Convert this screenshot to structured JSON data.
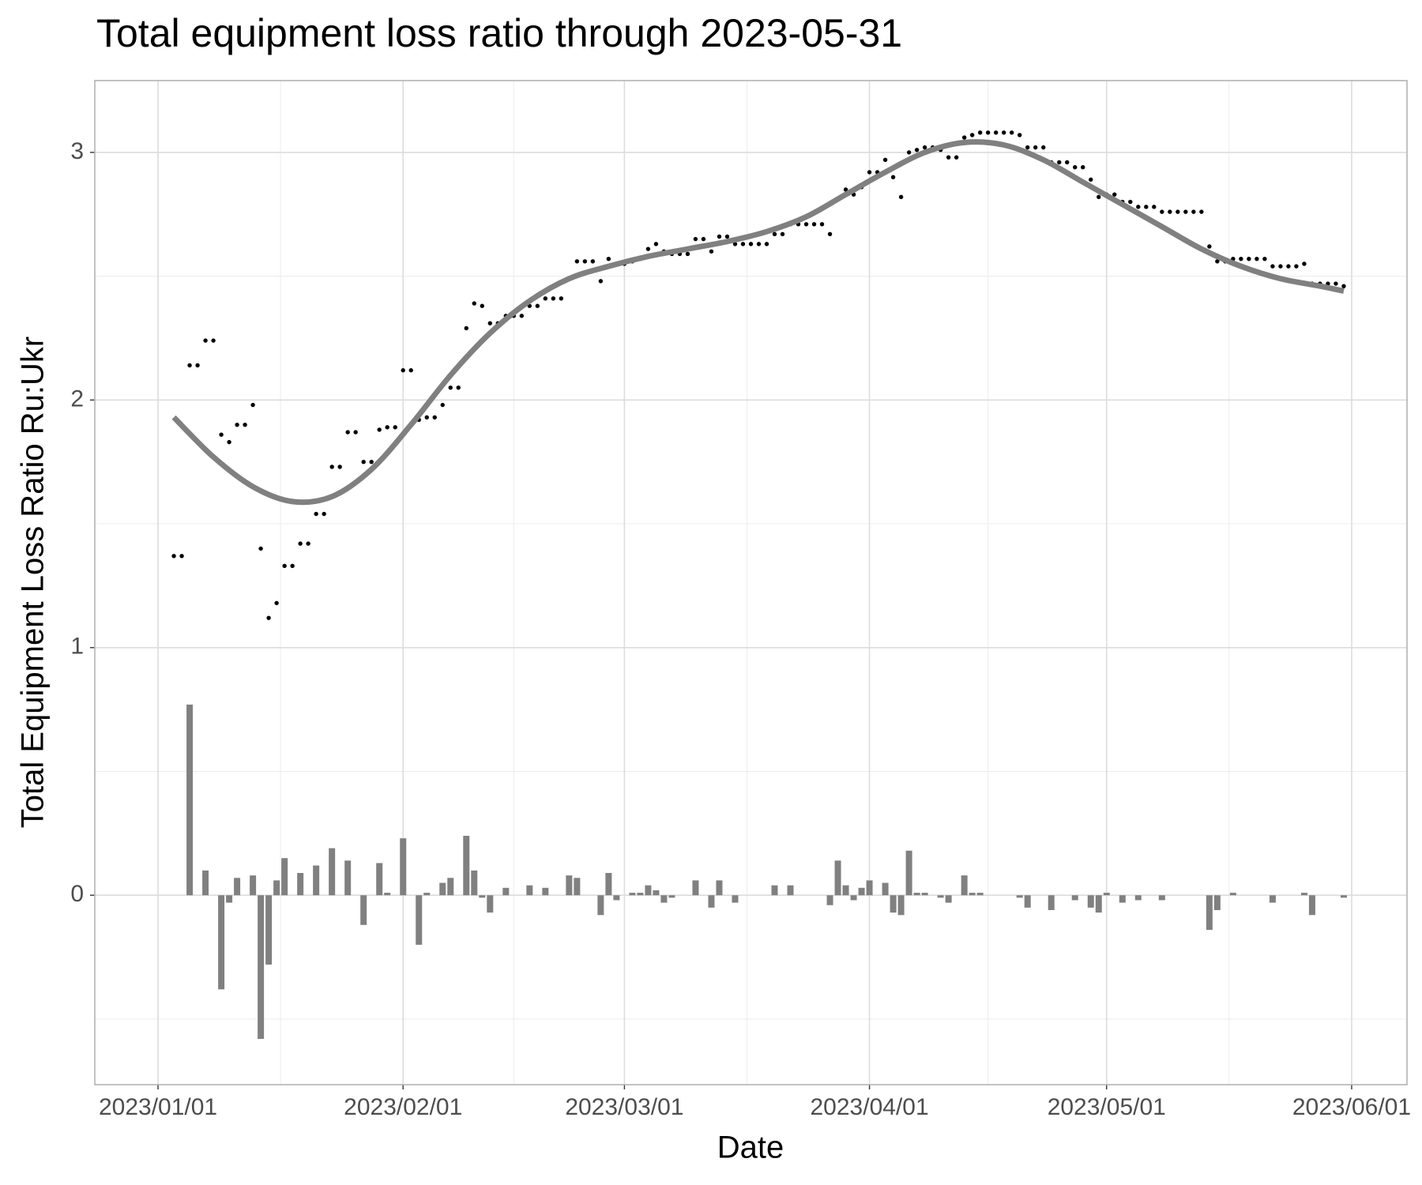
{
  "chart_data": {
    "type": "combo",
    "title": "Total equipment loss ratio through 2023-05-31",
    "x_label": "Date",
    "y_label": "Total Equipment Loss Ratio Ru:Ukr",
    "xlim": [
      "2022-12-24",
      "2023-06-08"
    ],
    "ylim": [
      -0.765,
      3.29
    ],
    "xticks": [
      {
        "value": "2023-01-01",
        "label": "2023/01/01"
      },
      {
        "value": "2023-02-01",
        "label": "2023/02/01"
      },
      {
        "value": "2023-03-01",
        "label": "2023/03/01"
      },
      {
        "value": "2023-04-01",
        "label": "2023/04/01"
      },
      {
        "value": "2023-05-01",
        "label": "2023/05/01"
      },
      {
        "value": "2023-06-01",
        "label": "2023/06/01"
      }
    ],
    "yticks": [
      0,
      1,
      2,
      3
    ],
    "grid": true,
    "x": [
      "2023-01-03",
      "2023-01-04",
      "2023-01-05",
      "2023-01-06",
      "2023-01-07",
      "2023-01-08",
      "2023-01-09",
      "2023-01-10",
      "2023-01-11",
      "2023-01-12",
      "2023-01-13",
      "2023-01-14",
      "2023-01-15",
      "2023-01-16",
      "2023-01-17",
      "2023-01-18",
      "2023-01-19",
      "2023-01-20",
      "2023-01-21",
      "2023-01-22",
      "2023-01-23",
      "2023-01-24",
      "2023-01-25",
      "2023-01-26",
      "2023-01-27",
      "2023-01-28",
      "2023-01-29",
      "2023-01-30",
      "2023-01-31",
      "2023-02-01",
      "2023-02-02",
      "2023-02-03",
      "2023-02-04",
      "2023-02-05",
      "2023-02-06",
      "2023-02-07",
      "2023-02-08",
      "2023-02-09",
      "2023-02-10",
      "2023-02-11",
      "2023-02-12",
      "2023-02-13",
      "2023-02-14",
      "2023-02-15",
      "2023-02-16",
      "2023-02-17",
      "2023-02-18",
      "2023-02-19",
      "2023-02-20",
      "2023-02-21",
      "2023-02-22",
      "2023-02-23",
      "2023-02-24",
      "2023-02-25",
      "2023-02-26",
      "2023-02-27",
      "2023-02-28",
      "2023-03-01",
      "2023-03-02",
      "2023-03-03",
      "2023-03-04",
      "2023-03-05",
      "2023-03-06",
      "2023-03-07",
      "2023-03-08",
      "2023-03-09",
      "2023-03-10",
      "2023-03-11",
      "2023-03-12",
      "2023-03-13",
      "2023-03-14",
      "2023-03-15",
      "2023-03-16",
      "2023-03-17",
      "2023-03-18",
      "2023-03-19",
      "2023-03-20",
      "2023-03-21",
      "2023-03-22",
      "2023-03-23",
      "2023-03-24",
      "2023-03-25",
      "2023-03-26",
      "2023-03-27",
      "2023-03-28",
      "2023-03-29",
      "2023-03-30",
      "2023-03-31",
      "2023-04-01",
      "2023-04-02",
      "2023-04-03",
      "2023-04-04",
      "2023-04-05",
      "2023-04-06",
      "2023-04-07",
      "2023-04-08",
      "2023-04-09",
      "2023-04-10",
      "2023-04-11",
      "2023-04-12",
      "2023-04-13",
      "2023-04-14",
      "2023-04-15",
      "2023-04-16",
      "2023-04-17",
      "2023-04-18",
      "2023-04-19",
      "2023-04-20",
      "2023-04-21",
      "2023-04-22",
      "2023-04-23",
      "2023-04-24",
      "2023-04-25",
      "2023-04-26",
      "2023-04-27",
      "2023-04-28",
      "2023-04-29",
      "2023-04-30",
      "2023-05-01",
      "2023-05-02",
      "2023-05-03",
      "2023-05-04",
      "2023-05-05",
      "2023-05-06",
      "2023-05-07",
      "2023-05-08",
      "2023-05-09",
      "2023-05-10",
      "2023-05-11",
      "2023-05-12",
      "2023-05-13",
      "2023-05-14",
      "2023-05-15",
      "2023-05-16",
      "2023-05-17",
      "2023-05-18",
      "2023-05-19",
      "2023-05-20",
      "2023-05-21",
      "2023-05-22",
      "2023-05-23",
      "2023-05-24",
      "2023-05-25",
      "2023-05-26",
      "2023-05-27",
      "2023-05-28",
      "2023-05-29",
      "2023-05-30",
      "2023-05-31"
    ],
    "series": [
      {
        "type": "bar",
        "color": "#808080",
        "values": [
          null,
          0,
          0.77,
          0,
          0.1,
          0,
          -0.38,
          -0.03,
          0.07,
          0,
          0.08,
          -0.58,
          -0.28,
          0.06,
          0.15,
          0,
          0.09,
          0,
          0.12,
          0,
          0.19,
          0,
          0.14,
          0,
          -0.12,
          0,
          0.13,
          0.01,
          0,
          0.23,
          0,
          -0.2,
          0.01,
          0,
          0.05,
          0.07,
          0,
          0.24,
          0.1,
          -0.01,
          -0.07,
          0,
          0.03,
          0,
          0,
          0.04,
          0,
          0.03,
          0,
          0,
          0.08,
          0.07,
          0,
          0,
          -0.08,
          0.09,
          -0.02,
          0,
          0.01,
          0.01,
          0.04,
          0.02,
          -0.03,
          -0.01,
          0,
          0,
          0.06,
          0,
          -0.05,
          0.06,
          0,
          -0.03,
          0,
          0,
          0,
          0,
          0.04,
          0,
          0.04,
          0,
          0,
          0,
          0,
          -0.04,
          0.14,
          0.04,
          -0.02,
          0.03,
          0.06,
          0,
          0.05,
          -0.07,
          -0.08,
          0.18,
          0.01,
          0.01,
          0,
          -0.01,
          -0.03,
          0,
          0.08,
          0.01,
          0.01,
          0,
          0,
          0,
          0,
          -0.01,
          -0.05,
          0,
          0,
          -0.06,
          0,
          0,
          -0.02,
          0,
          -0.05,
          -0.07,
          0.01,
          0,
          -0.03,
          0,
          -0.02,
          0,
          0,
          -0.02,
          0,
          0,
          0,
          0,
          0,
          -0.14,
          -0.06,
          0,
          0.01,
          0,
          0,
          0,
          0,
          -0.03,
          0,
          0,
          0,
          0.01,
          -0.08,
          0,
          0,
          0,
          -0.01
        ]
      },
      {
        "type": "scatter",
        "color": "#000000",
        "values": [
          1.37,
          1.37,
          2.14,
          2.14,
          2.24,
          2.24,
          1.86,
          1.83,
          1.9,
          1.9,
          1.98,
          1.4,
          1.12,
          1.18,
          1.33,
          1.33,
          1.42,
          1.42,
          1.54,
          1.54,
          1.73,
          1.73,
          1.87,
          1.87,
          1.75,
          1.75,
          1.88,
          1.89,
          1.89,
          2.12,
          2.12,
          1.92,
          1.93,
          1.93,
          1.98,
          2.05,
          2.05,
          2.29,
          2.39,
          2.38,
          2.31,
          2.31,
          2.34,
          2.34,
          2.34,
          2.38,
          2.38,
          2.41,
          2.41,
          2.41,
          2.49,
          2.56,
          2.56,
          2.56,
          2.48,
          2.57,
          2.55,
          2.55,
          2.56,
          2.57,
          2.61,
          2.63,
          2.6,
          2.59,
          2.59,
          2.59,
          2.65,
          2.65,
          2.6,
          2.66,
          2.66,
          2.63,
          2.63,
          2.63,
          2.63,
          2.63,
          2.67,
          2.67,
          2.71,
          2.71,
          2.71,
          2.71,
          2.71,
          2.67,
          2.81,
          2.85,
          2.83,
          2.86,
          2.92,
          2.92,
          2.97,
          2.9,
          2.82,
          3.0,
          3.01,
          3.02,
          3.02,
          3.01,
          2.98,
          2.98,
          3.06,
          3.07,
          3.08,
          3.08,
          3.08,
          3.08,
          3.08,
          3.07,
          3.02,
          3.02,
          3.02,
          2.96,
          2.96,
          2.96,
          2.94,
          2.94,
          2.89,
          2.82,
          2.83,
          2.83,
          2.8,
          2.8,
          2.78,
          2.78,
          2.78,
          2.76,
          2.76,
          2.76,
          2.76,
          2.76,
          2.76,
          2.62,
          2.56,
          2.56,
          2.57,
          2.57,
          2.57,
          2.57,
          2.57,
          2.54,
          2.54,
          2.54,
          2.54,
          2.55,
          2.47,
          2.47,
          2.47,
          2.47,
          2.46
        ]
      },
      {
        "type": "line",
        "color": "#808080",
        "x": [
          "2023-01-03",
          "2023-01-08",
          "2023-01-13",
          "2023-01-18",
          "2023-01-23",
          "2023-01-28",
          "2023-02-02",
          "2023-02-07",
          "2023-02-12",
          "2023-02-17",
          "2023-02-22",
          "2023-02-27",
          "2023-03-04",
          "2023-03-09",
          "2023-03-14",
          "2023-03-19",
          "2023-03-24",
          "2023-03-29",
          "2023-04-03",
          "2023-04-08",
          "2023-04-13",
          "2023-04-18",
          "2023-04-23",
          "2023-04-28",
          "2023-05-03",
          "2023-05-08",
          "2023-05-13",
          "2023-05-18",
          "2023-05-23",
          "2023-05-28",
          "2023-05-31"
        ],
        "values": [
          1.93,
          1.77,
          1.65,
          1.59,
          1.61,
          1.72,
          1.9,
          2.1,
          2.27,
          2.4,
          2.49,
          2.54,
          2.58,
          2.61,
          2.64,
          2.68,
          2.74,
          2.83,
          2.92,
          3.0,
          3.04,
          3.03,
          2.97,
          2.88,
          2.79,
          2.7,
          2.61,
          2.54,
          2.49,
          2.46,
          2.44
        ]
      }
    ]
  }
}
